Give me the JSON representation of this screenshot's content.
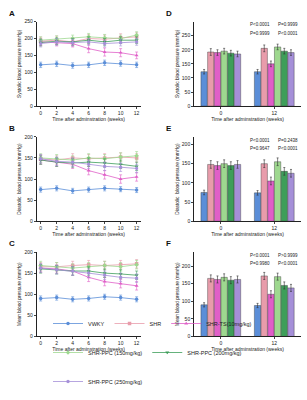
{
  "chart_data": [
    {
      "type": "line",
      "title": "A",
      "x": [
        0,
        2,
        4,
        6,
        8,
        10,
        12
      ],
      "xlabel": "Time after adminstration (weeks)",
      "ylabel": "Systolic blood pressure (mmHg)",
      "xlim": [
        -0.5,
        12.5
      ],
      "xticks": [
        0,
        2,
        4,
        6,
        8,
        10,
        12
      ],
      "ylim": [
        0,
        250
      ],
      "yticks": [
        0,
        50,
        100,
        150,
        200,
        250
      ],
      "grid": false,
      "legend": "bottom",
      "series": [
        {
          "name": "VWKY",
          "color": "#5b8ed8",
          "marker": "circle",
          "values": [
            122,
            125,
            120,
            122,
            128,
            126,
            122
          ],
          "errors": [
            8,
            8,
            8,
            8,
            8,
            8,
            8
          ]
        },
        {
          "name": "SHR",
          "color": "#e89cab",
          "marker": "square",
          "values": [
            192,
            195,
            190,
            200,
            198,
            202,
            205
          ],
          "errors": [
            12,
            12,
            12,
            12,
            12,
            12,
            12
          ]
        },
        {
          "name": "SHR-TS(10mg/kg)",
          "color": "#e05fc8",
          "marker": "triangle-up",
          "values": [
            190,
            188,
            185,
            170,
            160,
            158,
            150
          ],
          "errors": [
            10,
            10,
            10,
            12,
            12,
            12,
            10
          ]
        },
        {
          "name": "SHR-PPC (150mg/kg)",
          "color": "#9ed88f",
          "marker": "diamond",
          "values": [
            195,
            198,
            200,
            205,
            202,
            200,
            210
          ],
          "errors": [
            10,
            10,
            10,
            10,
            10,
            10,
            10
          ]
        },
        {
          "name": "SHR-PPC (200mg/kg)",
          "color": "#3e9e5a",
          "marker": "triangle-down",
          "values": [
            188,
            192,
            190,
            195,
            190,
            195,
            195
          ],
          "errors": [
            10,
            10,
            10,
            10,
            10,
            10,
            10
          ]
        },
        {
          "name": "SHR-PPC (250mg/kg)",
          "color": "#a58fd8",
          "marker": "hexagon",
          "values": [
            185,
            190,
            188,
            190,
            185,
            188,
            190
          ],
          "errors": [
            10,
            10,
            10,
            10,
            10,
            10,
            10
          ]
        }
      ]
    },
    {
      "type": "line",
      "title": "B",
      "x": [
        0,
        2,
        4,
        6,
        8,
        10,
        12
      ],
      "xlabel": "Time after adminstration (weeks)",
      "ylabel": "Diastolic  blood pressure (mmHg)",
      "xlim": [
        -0.5,
        12.5
      ],
      "xticks": [
        0,
        2,
        4,
        6,
        8,
        10,
        12
      ],
      "ylim": [
        0,
        200
      ],
      "yticks": [
        0,
        50,
        100,
        150,
        200
      ],
      "grid": false,
      "series": [
        {
          "name": "VWKY",
          "color": "#5b8ed8",
          "marker": "circle",
          "values": [
            75,
            78,
            72,
            75,
            78,
            76,
            74
          ],
          "errors": [
            6,
            6,
            6,
            6,
            6,
            6,
            6
          ]
        },
        {
          "name": "SHR",
          "color": "#e89cab",
          "marker": "square",
          "values": [
            148,
            145,
            150,
            148,
            150,
            152,
            150
          ],
          "errors": [
            10,
            10,
            10,
            10,
            10,
            10,
            10
          ]
        },
        {
          "name": "SHR-TS(10mg/kg)",
          "color": "#e05fc8",
          "marker": "triangle-up",
          "values": [
            145,
            140,
            135,
            120,
            110,
            100,
            105
          ],
          "errors": [
            10,
            10,
            10,
            10,
            10,
            10,
            10
          ]
        },
        {
          "name": "SHR-PPC (150mg/kg)",
          "color": "#9ed88f",
          "marker": "diamond",
          "values": [
            150,
            148,
            145,
            150,
            148,
            152,
            155
          ],
          "errors": [
            10,
            10,
            10,
            10,
            10,
            10,
            10
          ]
        },
        {
          "name": "SHR-PPC (200mg/kg)",
          "color": "#3e9e5a",
          "marker": "triangle-down",
          "values": [
            145,
            140,
            138,
            140,
            138,
            135,
            130
          ],
          "errors": [
            10,
            10,
            10,
            10,
            10,
            10,
            10
          ]
        },
        {
          "name": "SHR-PPC (250mg/kg)",
          "color": "#a58fd8",
          "marker": "hexagon",
          "values": [
            148,
            142,
            140,
            135,
            130,
            128,
            125
          ],
          "errors": [
            10,
            10,
            10,
            10,
            10,
            10,
            10
          ]
        }
      ]
    },
    {
      "type": "line",
      "title": "C",
      "x": [
        0,
        2,
        4,
        6,
        8,
        10,
        12
      ],
      "xlabel": "Time after adminstration (weeks)",
      "ylabel": "Mean blood pressure (mmHg)",
      "xlim": [
        -0.5,
        12.5
      ],
      "xticks": [
        0,
        2,
        4,
        6,
        8,
        10,
        12
      ],
      "ylim": [
        0,
        200
      ],
      "yticks": [
        0,
        50,
        100,
        150,
        200
      ],
      "grid": false,
      "series": [
        {
          "name": "VWKY",
          "color": "#5b8ed8",
          "marker": "circle",
          "values": [
            90,
            92,
            88,
            90,
            94,
            92,
            88
          ],
          "errors": [
            6,
            6,
            6,
            6,
            6,
            6,
            6
          ]
        },
        {
          "name": "SHR",
          "color": "#e89cab",
          "marker": "square",
          "values": [
            165,
            165,
            168,
            170,
            168,
            170,
            172
          ],
          "errors": [
            10,
            10,
            10,
            10,
            10,
            10,
            10
          ]
        },
        {
          "name": "SHR-TS(10mg/kg)",
          "color": "#e05fc8",
          "marker": "triangle-up",
          "values": [
            162,
            160,
            155,
            140,
            130,
            125,
            120
          ],
          "errors": [
            10,
            10,
            10,
            10,
            10,
            10,
            10
          ]
        },
        {
          "name": "SHR-PPC (150mg/kg)",
          "color": "#9ed88f",
          "marker": "diamond",
          "values": [
            168,
            165,
            162,
            165,
            168,
            165,
            170
          ],
          "errors": [
            10,
            10,
            10,
            10,
            10,
            10,
            10
          ]
        },
        {
          "name": "SHR-PPC (200mg/kg)",
          "color": "#3e9e5a",
          "marker": "triangle-down",
          "values": [
            160,
            158,
            155,
            155,
            150,
            148,
            145
          ],
          "errors": [
            10,
            10,
            10,
            10,
            10,
            10,
            10
          ]
        },
        {
          "name": "SHR-PPC (250mg/kg)",
          "color": "#a58fd8",
          "marker": "hexagon",
          "values": [
            162,
            158,
            155,
            150,
            145,
            140,
            138
          ],
          "errors": [
            10,
            10,
            10,
            10,
            10,
            10,
            10
          ]
        }
      ]
    },
    {
      "type": "bar",
      "title": "D",
      "categories": [
        "0",
        "12"
      ],
      "xlabel": "Time after adminstration (weeks)",
      "ylabel": "Systolic blood pressure (mmHg)",
      "ylim": [
        0,
        300
      ],
      "yticks": [
        0,
        50,
        100,
        150,
        200,
        250
      ],
      "grid": false,
      "annotations": [
        "P<0.0001",
        "P=0.9999",
        "P=0.9999",
        "P<0.0001"
      ],
      "series": [
        {
          "name": "VWKY",
          "color": "#5b8ed8",
          "values": [
            122,
            122
          ],
          "errors": [
            8,
            8
          ]
        },
        {
          "name": "SHR",
          "color": "#e89cab",
          "values": [
            192,
            205
          ],
          "errors": [
            12,
            12
          ]
        },
        {
          "name": "SHR-TS(10mg/kg)",
          "color": "#e05fc8",
          "values": [
            190,
            150
          ],
          "errors": [
            10,
            10
          ]
        },
        {
          "name": "SHR-PPC (150mg/kg)",
          "color": "#9ed88f",
          "values": [
            195,
            210
          ],
          "errors": [
            10,
            10
          ]
        },
        {
          "name": "SHR-PPC (200mg/kg)",
          "color": "#3e9e5a",
          "values": [
            188,
            195
          ],
          "errors": [
            10,
            10
          ]
        },
        {
          "name": "SHR-PPC (250mg/kg)",
          "color": "#a58fd8",
          "values": [
            185,
            190
          ],
          "errors": [
            10,
            10
          ]
        }
      ]
    },
    {
      "type": "bar",
      "title": "E",
      "categories": [
        "0",
        "12"
      ],
      "xlabel": "Time after adminstration (weeks)",
      "ylabel": "Diastolic  blood pressure (mmHg)",
      "ylim": [
        0,
        220
      ],
      "yticks": [
        0,
        50,
        100,
        150,
        200
      ],
      "grid": false,
      "annotations": [
        "P<0.0001",
        "P=0.2438",
        "P=0.9647",
        "P<0.0001"
      ],
      "series": [
        {
          "name": "VWKY",
          "color": "#5b8ed8",
          "values": [
            75,
            74
          ],
          "errors": [
            6,
            6
          ]
        },
        {
          "name": "SHR",
          "color": "#e89cab",
          "values": [
            148,
            150
          ],
          "errors": [
            10,
            10
          ]
        },
        {
          "name": "SHR-TS(10mg/kg)",
          "color": "#e05fc8",
          "values": [
            145,
            105
          ],
          "errors": [
            10,
            10
          ]
        },
        {
          "name": "SHR-PPC (150mg/kg)",
          "color": "#9ed88f",
          "values": [
            150,
            155
          ],
          "errors": [
            10,
            10
          ]
        },
        {
          "name": "SHR-PPC (200mg/kg)",
          "color": "#3e9e5a",
          "values": [
            145,
            130
          ],
          "errors": [
            10,
            10
          ]
        },
        {
          "name": "SHR-PPC (250mg/kg)",
          "color": "#a58fd8",
          "values": [
            148,
            125
          ],
          "errors": [
            10,
            10
          ]
        }
      ]
    },
    {
      "type": "bar",
      "title": "F",
      "categories": [
        "0",
        "12"
      ],
      "xlabel": "Time after adminstration (weeks)",
      "ylabel": "Mean blood pressure (mmHg)",
      "ylim": [
        0,
        240
      ],
      "yticks": [
        0,
        50,
        100,
        150,
        200
      ],
      "grid": false,
      "annotations": [
        "P<0.0001",
        "P>0.9999",
        "P=0.9980",
        "P<0.0001"
      ],
      "series": [
        {
          "name": "VWKY",
          "color": "#5b8ed8",
          "values": [
            90,
            88
          ],
          "errors": [
            6,
            6
          ]
        },
        {
          "name": "SHR",
          "color": "#e89cab",
          "values": [
            165,
            172
          ],
          "errors": [
            10,
            10
          ]
        },
        {
          "name": "SHR-TS(10mg/kg)",
          "color": "#e05fc8",
          "values": [
            162,
            120
          ],
          "errors": [
            10,
            10
          ]
        },
        {
          "name": "SHR-PPC (150mg/kg)",
          "color": "#9ed88f",
          "values": [
            168,
            170
          ],
          "errors": [
            10,
            10
          ]
        },
        {
          "name": "SHR-PPC (200mg/kg)",
          "color": "#3e9e5a",
          "values": [
            160,
            145
          ],
          "errors": [
            10,
            10
          ]
        },
        {
          "name": "SHR-PPC (250mg/kg)",
          "color": "#a58fd8",
          "values": [
            162,
            138
          ],
          "errors": [
            10,
            10
          ]
        }
      ]
    }
  ]
}
